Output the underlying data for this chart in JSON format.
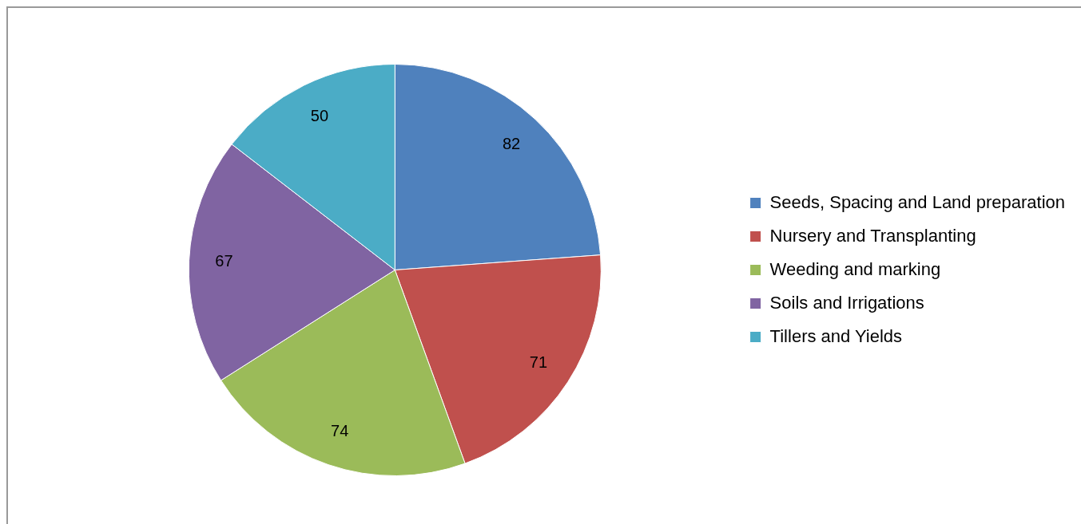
{
  "chart_data": {
    "type": "pie",
    "categories": [
      "Seeds, Spacing and Land preparation",
      "Nursery and Transplanting",
      "Weeding and marking",
      "Soils and Irrigations",
      "Tillers and Yields"
    ],
    "values": [
      82,
      71,
      74,
      67,
      50
    ],
    "colors": [
      "#4f81bd",
      "#c0504d",
      "#9bbb59",
      "#8064a2",
      "#4bacc6"
    ],
    "data_labels": true,
    "legend": "right"
  }
}
